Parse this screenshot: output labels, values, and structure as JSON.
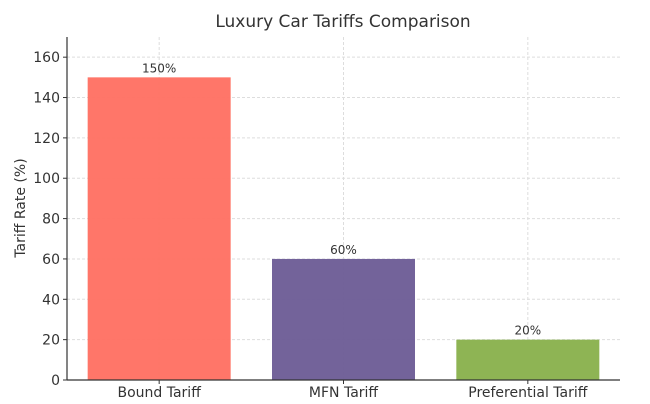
{
  "chart_data": {
    "type": "bar",
    "title": "Luxury Car Tariffs Comparison",
    "xlabel": "",
    "ylabel": "Tariff Rate (%)",
    "categories": [
      "Bound Tariff",
      "MFN Tariff",
      "Preferential Tariff"
    ],
    "values": [
      150,
      60,
      20
    ],
    "data_labels": [
      "150%",
      "60%",
      "20%"
    ],
    "colors": [
      "#ff6f61",
      "#6b5b95",
      "#88b04b"
    ],
    "ylim": [
      0,
      170
    ],
    "yticks": [
      0,
      20,
      40,
      60,
      80,
      100,
      120,
      140,
      160
    ],
    "grid": true
  }
}
